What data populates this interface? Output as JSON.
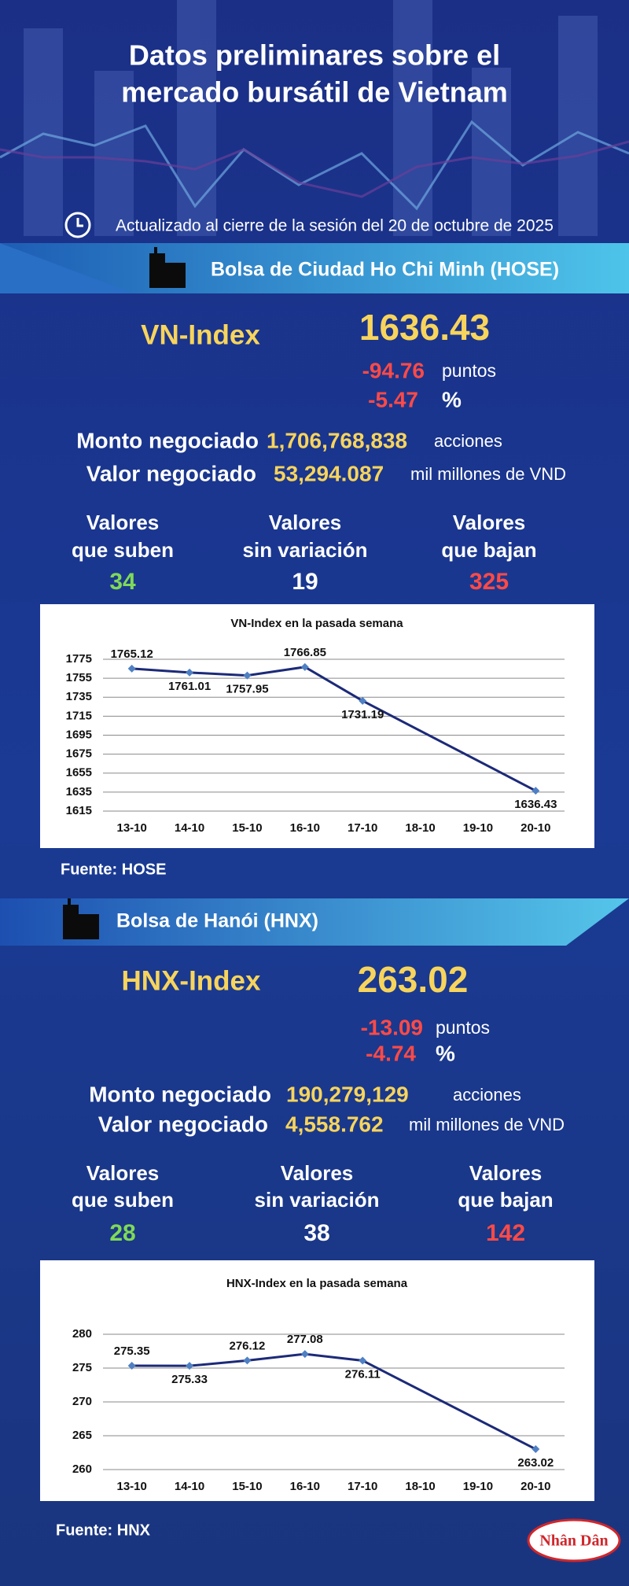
{
  "header": {
    "title": [
      "Datos preliminares sobre el",
      "mercado bursátil de Vietnam"
    ],
    "updated": "Actualizado al cierre de la sesión del 20 de octubre de 2025"
  },
  "hose": {
    "name": "Bolsa de Ciudad Ho Chi Minh (HOSE)",
    "index_name": "VN-Index",
    "index_value": "1636.43",
    "change_points": "-94.76",
    "points_unit": "puntos",
    "change_percent": "-5.47",
    "percent_unit": "%",
    "volume_label": "Monto negociado",
    "volume": "1,706,768,838",
    "volume_unit": "acciones",
    "value_label": "Valor negociado",
    "value": "53,294.087",
    "value_unit": "mil millones de VND",
    "advancers_label": [
      "Valores",
      "que suben"
    ],
    "advancers": "34",
    "unchanged_label": [
      "Valores",
      "sin variación"
    ],
    "unchanged": "19",
    "decliners_label": [
      "Valores",
      "que bajan"
    ],
    "decliners": "325",
    "source": "Fuente: HOSE"
  },
  "hnx": {
    "name": "Bolsa de Hanói (HNX)",
    "index_name": "HNX-Index",
    "index_value": "263.02",
    "change_points": "-13.09",
    "points_unit": "puntos",
    "change_percent": "-4.74",
    "percent_unit": "%",
    "volume_label": "Monto negociado",
    "volume": "190,279,129",
    "volume_unit": "acciones",
    "value_label": "Valor negociado",
    "value": "4,558.762",
    "value_unit": "mil millones de VND",
    "advancers_label": [
      "Valores",
      "que suben"
    ],
    "advancers": "28",
    "unchanged_label": [
      "Valores",
      "sin variación"
    ],
    "unchanged": "38",
    "decliners_label": [
      "Valores",
      "que bajan"
    ],
    "decliners": "142",
    "source": "Fuente:  HNX"
  },
  "chart_data": [
    {
      "type": "line",
      "title": "VN-Index en la pasada semana",
      "categories": [
        "13-10",
        "14-10",
        "15-10",
        "16-10",
        "17-10",
        "18-10",
        "19-10",
        "20-10"
      ],
      "x": [
        "13-10",
        "14-10",
        "15-10",
        "16-10",
        "17-10",
        "20-10"
      ],
      "values": [
        1765.12,
        1761.01,
        1757.95,
        1766.85,
        1731.19,
        1636.43
      ],
      "color": "#1c2a78",
      "marker_color": "#4f80c4",
      "ylim": [
        1615,
        1775
      ],
      "yticks": [
        1615,
        1635,
        1655,
        1675,
        1695,
        1715,
        1735,
        1755,
        1775
      ],
      "grid": true
    },
    {
      "type": "line",
      "title": "HNX-Index en la pasada semana",
      "categories": [
        "13-10",
        "14-10",
        "15-10",
        "16-10",
        "17-10",
        "18-10",
        "19-10",
        "20-10"
      ],
      "x": [
        "13-10",
        "14-10",
        "15-10",
        "16-10",
        "17-10",
        "20-10"
      ],
      "values": [
        275.35,
        275.33,
        276.12,
        277.08,
        276.11,
        263.02
      ],
      "color": "#1c2a78",
      "marker_color": "#4f80c4",
      "ylim": [
        260,
        280
      ],
      "yticks": [
        260,
        265,
        270,
        275,
        280
      ],
      "grid": true
    }
  ],
  "footer": {
    "logo": "Nhân Dân"
  }
}
